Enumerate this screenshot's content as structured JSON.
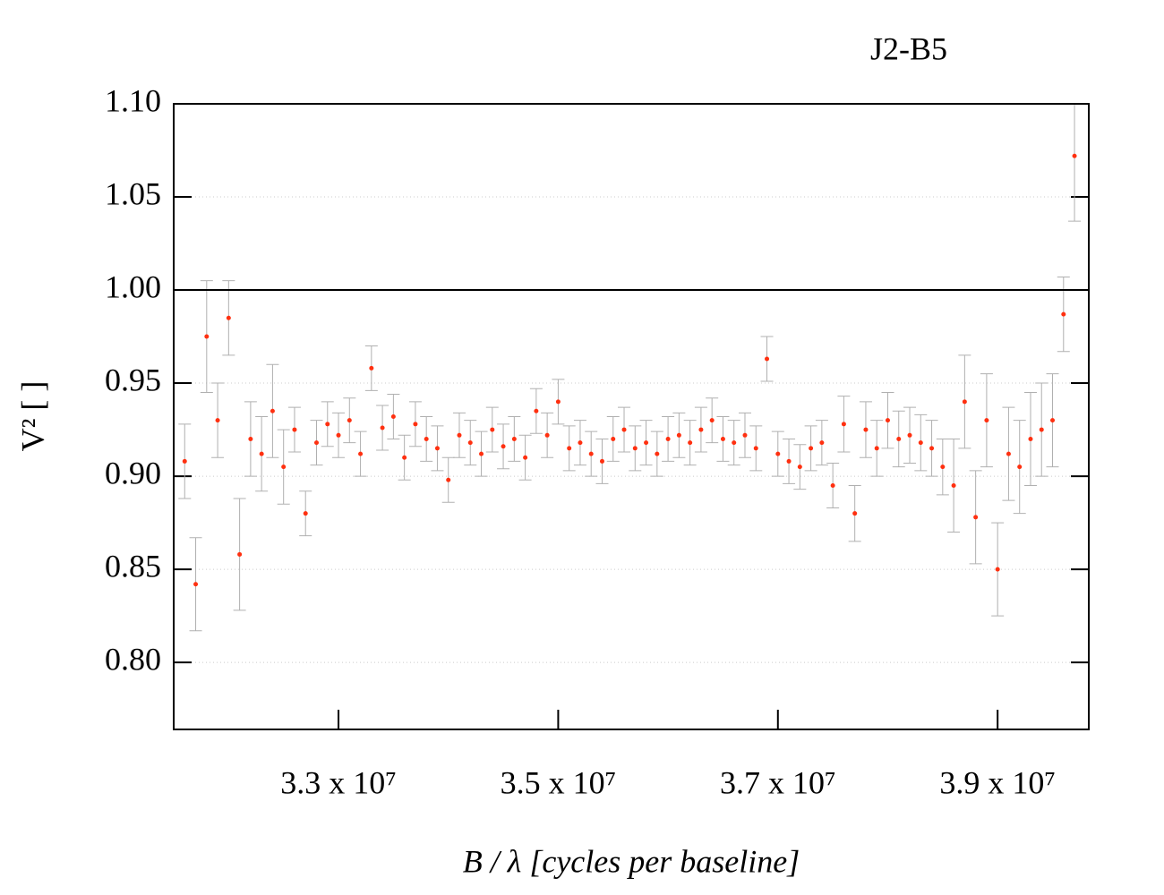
{
  "chart_data": {
    "type": "scatter",
    "title": "J2-B5",
    "x_label": "B / λ [cycles per baseline]",
    "y_label": "V² [ ]",
    "xlim": [
      31500000,
      39830000
    ],
    "ylim": [
      0.764,
      1.1
    ],
    "xticks": [
      {
        "value": 33000000,
        "label": "3.3 x 10⁷"
      },
      {
        "value": 35000000,
        "label": "3.5 x 10⁷"
      },
      {
        "value": 37000000,
        "label": "3.7 x 10⁷"
      },
      {
        "value": 39000000,
        "label": "3.9 x 10⁷"
      }
    ],
    "yticks": [
      {
        "value": 0.8,
        "label": "0.80"
      },
      0.85,
      {
        "value": 0.9,
        "label": "0.90"
      },
      0.95,
      {
        "value": 1.0,
        "label": "1.00"
      },
      1.05,
      {
        "value": 1.1,
        "label": "1.10"
      }
    ],
    "grid": true,
    "reference_line": 1.0,
    "color": "#ff3010",
    "error_color": "#b0b0b0",
    "x": [
      31600000,
      31700000,
      31800000,
      31900000,
      32000000,
      32100000,
      32200000,
      32300000,
      32400000,
      32500000,
      32600000,
      32700000,
      32800000,
      32900000,
      33000000,
      33100000,
      33200000,
      33300000,
      33400000,
      33500000,
      33600000,
      33700000,
      33800000,
      33900000,
      34000000,
      34100000,
      34200000,
      34300000,
      34400000,
      34500000,
      34600000,
      34700000,
      34800000,
      34900000,
      35000000,
      35100000,
      35200000,
      35300000,
      35400000,
      35500000,
      35600000,
      35700000,
      35800000,
      35900000,
      36000000,
      36100000,
      36200000,
      36300000,
      36400000,
      36500000,
      36600000,
      36700000,
      36800000,
      36900000,
      37000000,
      37100000,
      37200000,
      37300000,
      37400000,
      37500000,
      37600000,
      37700000,
      37800000,
      37900000,
      38000000,
      38100000,
      38200000,
      38300000,
      38400000,
      38500000,
      38600000,
      38700000,
      38800000,
      38900000,
      39000000,
      39100000,
      39200000,
      39300000,
      39400000,
      39500000,
      39600000,
      39700000
    ],
    "values": [
      0.908,
      0.842,
      0.975,
      0.93,
      0.985,
      0.858,
      0.92,
      0.912,
      0.935,
      0.905,
      0.925,
      0.88,
      0.918,
      0.928,
      0.922,
      0.93,
      0.912,
      0.958,
      0.926,
      0.932,
      0.91,
      0.928,
      0.92,
      0.915,
      0.898,
      0.922,
      0.918,
      0.912,
      0.925,
      0.916,
      0.92,
      0.91,
      0.935,
      0.922,
      0.94,
      0.915,
      0.918,
      0.912,
      0.908,
      0.92,
      0.925,
      0.915,
      0.918,
      0.912,
      0.92,
      0.922,
      0.918,
      0.925,
      0.93,
      0.92,
      0.918,
      0.922,
      0.915,
      0.963,
      0.912,
      0.908,
      0.905,
      0.915,
      0.918,
      0.895,
      0.928,
      0.88,
      0.925,
      0.915,
      0.93,
      0.92,
      0.922,
      0.918,
      0.915,
      0.905,
      0.895,
      0.94,
      0.878,
      0.93,
      0.85,
      0.912,
      0.905,
      0.92,
      0.925,
      0.93,
      0.987,
      1.072
    ],
    "errors": [
      0.02,
      0.025,
      0.03,
      0.02,
      0.02,
      0.03,
      0.02,
      0.02,
      0.025,
      0.02,
      0.012,
      0.012,
      0.012,
      0.012,
      0.012,
      0.012,
      0.012,
      0.012,
      0.012,
      0.012,
      0.012,
      0.012,
      0.012,
      0.012,
      0.012,
      0.012,
      0.012,
      0.012,
      0.012,
      0.012,
      0.012,
      0.012,
      0.012,
      0.012,
      0.012,
      0.012,
      0.012,
      0.012,
      0.012,
      0.012,
      0.012,
      0.012,
      0.012,
      0.012,
      0.012,
      0.012,
      0.012,
      0.012,
      0.012,
      0.012,
      0.012,
      0.012,
      0.012,
      0.012,
      0.012,
      0.012,
      0.012,
      0.012,
      0.012,
      0.012,
      0.015,
      0.015,
      0.015,
      0.015,
      0.015,
      0.015,
      0.015,
      0.015,
      0.015,
      0.015,
      0.025,
      0.025,
      0.025,
      0.025,
      0.025,
      0.025,
      0.025,
      0.025,
      0.025,
      0.025,
      0.02,
      0.035
    ]
  }
}
